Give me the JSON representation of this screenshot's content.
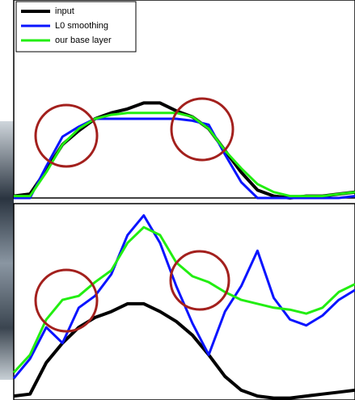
{
  "chart_data": [
    {
      "type": "line",
      "xlim": [
        0,
        21
      ],
      "ylim": [
        0,
        1
      ],
      "x": [
        0,
        1,
        2,
        3,
        4,
        5,
        6,
        7,
        8,
        9,
        10,
        11,
        12,
        13,
        14,
        15,
        16,
        17,
        18,
        19,
        20,
        21
      ],
      "legend": "upper left",
      "series": [
        {
          "name": "input",
          "color": "#000000",
          "values": [
            0.01,
            0.02,
            0.14,
            0.27,
            0.34,
            0.4,
            0.43,
            0.45,
            0.48,
            0.48,
            0.44,
            0.41,
            0.35,
            0.24,
            0.13,
            0.04,
            0.01,
            0.0,
            0.01,
            0.01,
            0.02,
            0.03
          ]
        },
        {
          "name": "L0 smoothing",
          "color": "#0a14ff",
          "values": [
            0.0,
            0.0,
            0.16,
            0.31,
            0.36,
            0.4,
            0.4,
            0.4,
            0.4,
            0.4,
            0.4,
            0.39,
            0.37,
            0.22,
            0.08,
            0.0,
            0.0,
            0.0,
            0.0,
            0.0,
            0.0,
            0.01
          ]
        },
        {
          "name": "our base layer",
          "color": "#22ee11",
          "values": [
            0.01,
            0.01,
            0.13,
            0.27,
            0.35,
            0.4,
            0.42,
            0.43,
            0.43,
            0.43,
            0.43,
            0.41,
            0.35,
            0.24,
            0.15,
            0.07,
            0.03,
            0.01,
            0.01,
            0.01,
            0.02,
            0.03
          ]
        }
      ]
    },
    {
      "type": "line",
      "xlim": [
        0,
        21
      ],
      "ylim": [
        0,
        1
      ],
      "x": [
        0,
        1,
        2,
        3,
        4,
        5,
        6,
        7,
        8,
        9,
        10,
        11,
        12,
        13,
        14,
        15,
        16,
        17,
        18,
        19,
        20,
        21
      ],
      "series": [
        {
          "color": "#000000",
          "values": [
            0.02,
            0.03,
            0.19,
            0.29,
            0.37,
            0.42,
            0.45,
            0.49,
            0.49,
            0.45,
            0.4,
            0.33,
            0.23,
            0.12,
            0.05,
            0.02,
            0.01,
            0.01,
            0.02,
            0.03,
            0.04,
            0.05
          ]
        },
        {
          "color": "#0a14ff",
          "values": [
            0.11,
            0.21,
            0.37,
            0.29,
            0.47,
            0.53,
            0.64,
            0.84,
            0.94,
            0.8,
            0.58,
            0.39,
            0.23,
            0.45,
            0.58,
            0.76,
            0.52,
            0.41,
            0.38,
            0.43,
            0.51,
            0.56
          ]
        },
        {
          "color": "#22ee11",
          "values": [
            0.14,
            0.23,
            0.41,
            0.51,
            0.53,
            0.6,
            0.66,
            0.8,
            0.88,
            0.84,
            0.7,
            0.63,
            0.6,
            0.55,
            0.51,
            0.49,
            0.47,
            0.46,
            0.44,
            0.47,
            0.55,
            0.59
          ]
        }
      ]
    }
  ]
}
